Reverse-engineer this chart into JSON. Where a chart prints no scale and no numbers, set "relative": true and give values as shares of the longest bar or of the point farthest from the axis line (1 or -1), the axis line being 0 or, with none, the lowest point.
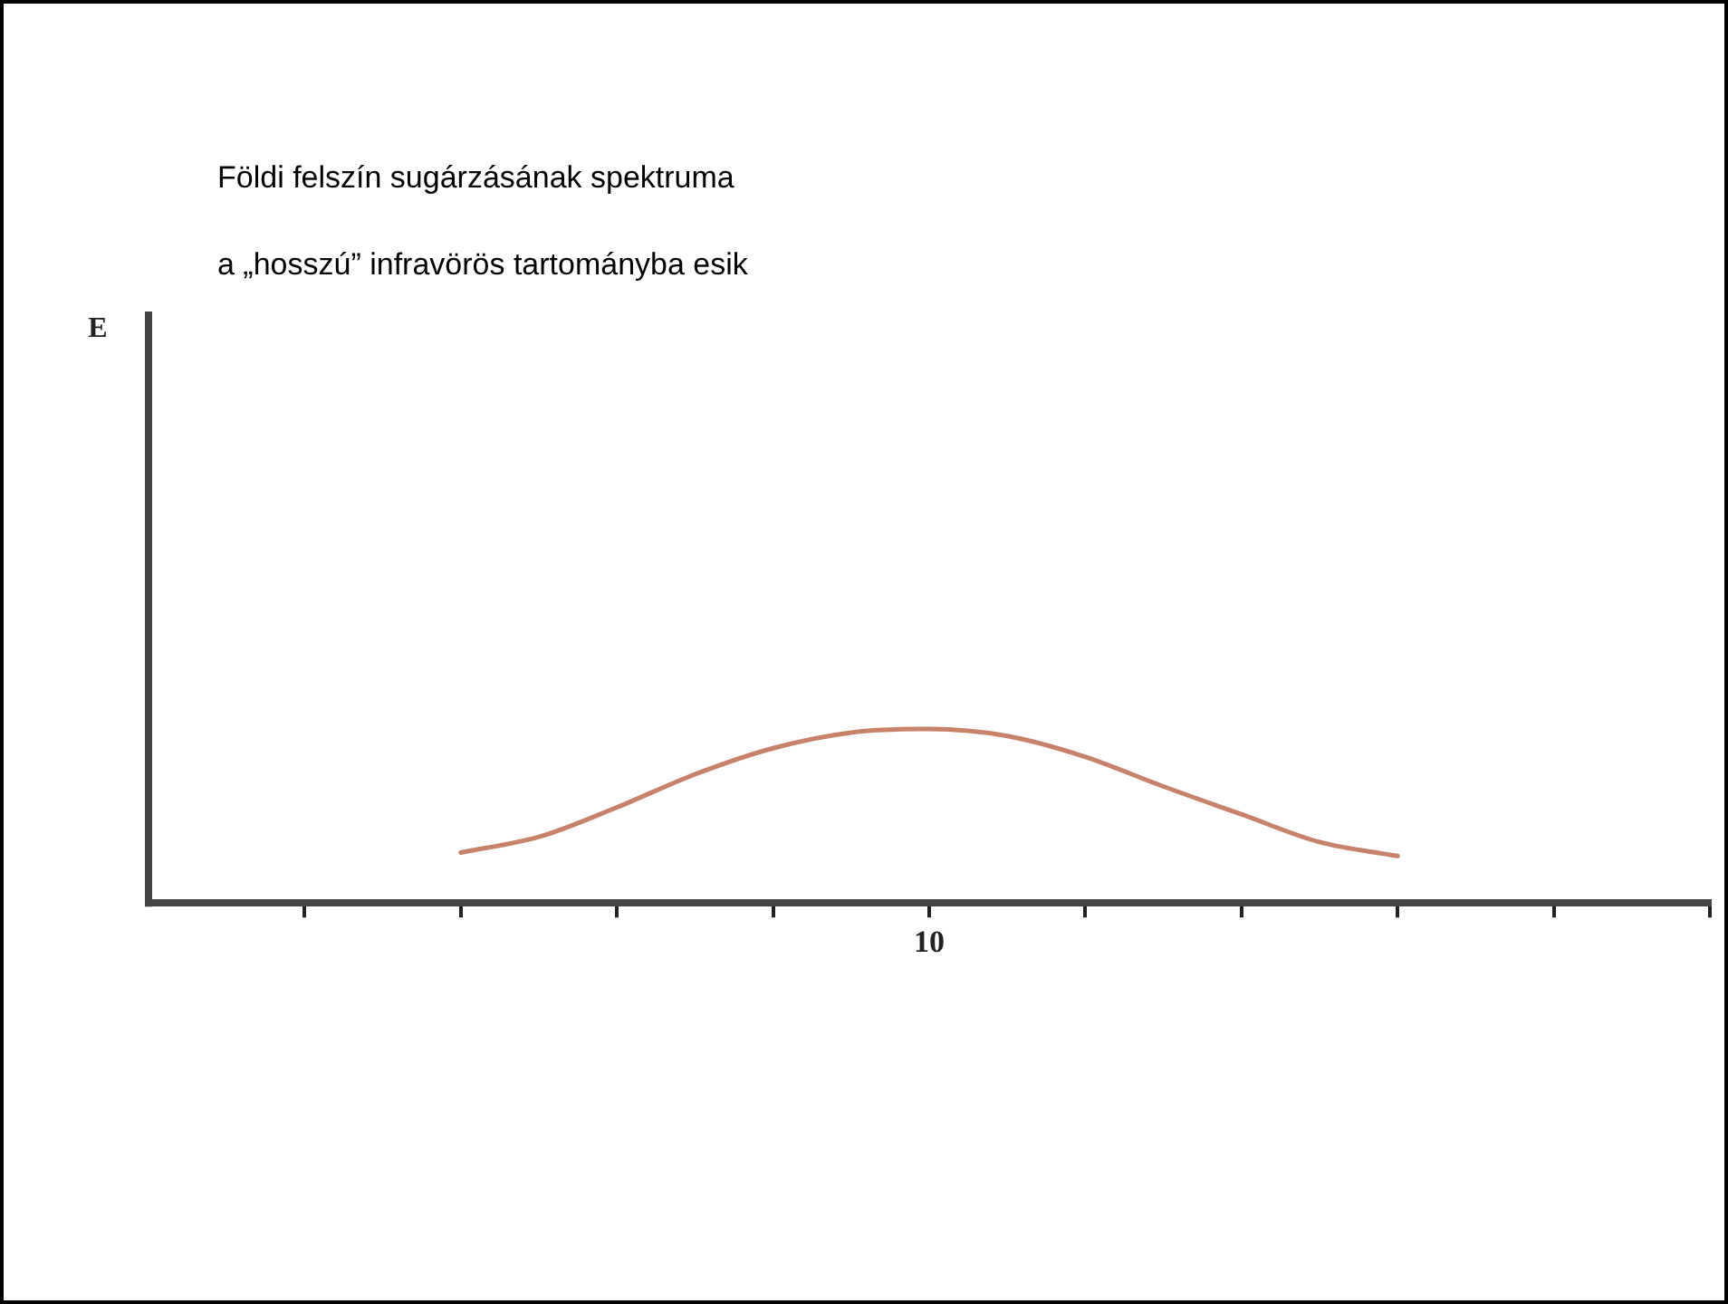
{
  "chart_data": {
    "type": "line",
    "title": "Földi felszín sugárzásának spektruma",
    "subtitle": "a „hosszú” infravörös tartományba esik",
    "relative": true,
    "legend": false,
    "grid": false,
    "marker": "none",
    "line_style": "solid",
    "annotations": [
      "E",
      "10"
    ],
    "categories": [
      null,
      null,
      null,
      null,
      null,
      null,
      null,
      null,
      null,
      null,
      null,
      null,
      null,
      null,
      null,
      null,
      null,
      null,
      null,
      null,
      null
    ],
    "series": [
      {
        "color": "#c8826a",
        "values": [
          null,
          null,
          null,
          null,
          0.29,
          0.38,
          0.55,
          0.74,
          0.89,
          0.98,
          1,
          0.96,
          0.84,
          0.67,
          0.51,
          0.35,
          0.27,
          null,
          null,
          null,
          null
        ]
      }
    ]
  }
}
